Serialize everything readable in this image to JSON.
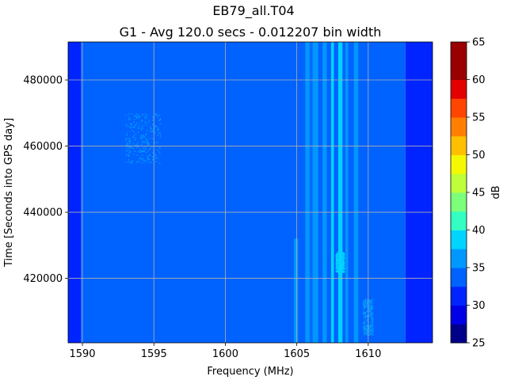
{
  "chart_data": {
    "type": "heatmap",
    "title": "EB79_all.T04",
    "subtitle": "G1 - Avg 120.0 secs - 0.012207 bin width",
    "xlabel": "Frequency (MHz)",
    "ylabel": "Time [Seconds into GPS day]",
    "xlim": [
      1589.0,
      1614.5
    ],
    "ylim": [
      400500,
      491500
    ],
    "x_ticks": [
      1590,
      1595,
      1600,
      1605,
      1610
    ],
    "y_ticks": [
      420000,
      440000,
      460000,
      480000
    ],
    "x_tick_labels": [
      "1590",
      "1595",
      "1600",
      "1605",
      "1610"
    ],
    "y_tick_labels": [
      "420000",
      "440000",
      "460000",
      "480000"
    ],
    "grid": true,
    "colorbar": {
      "label": "dB",
      "range": [
        25,
        65
      ],
      "ticks": [
        25,
        30,
        35,
        40,
        45,
        50,
        55,
        60,
        65
      ],
      "tick_labels": [
        "25",
        "30",
        "35",
        "40",
        "45",
        "50",
        "55",
        "60",
        "65"
      ],
      "levels": [
        {
          "from": 25.0,
          "to": 27.5,
          "color": "#00008a"
        },
        {
          "from": 27.5,
          "to": 30.0,
          "color": "#0000e6"
        },
        {
          "from": 30.0,
          "to": 32.5,
          "color": "#0024ff"
        },
        {
          "from": 32.5,
          "to": 35.0,
          "color": "#0062ff"
        },
        {
          "from": 35.0,
          "to": 37.5,
          "color": "#0098ff"
        },
        {
          "from": 37.5,
          "to": 40.0,
          "color": "#00d4ff"
        },
        {
          "from": 40.0,
          "to": 42.5,
          "color": "#33ffc2"
        },
        {
          "from": 42.5,
          "to": 45.0,
          "color": "#7dff7a"
        },
        {
          "from": 45.0,
          "to": 47.5,
          "color": "#bfff39"
        },
        {
          "from": 47.5,
          "to": 50.0,
          "color": "#f4f802"
        },
        {
          "from": 50.0,
          "to": 52.5,
          "color": "#ffc000"
        },
        {
          "from": 52.5,
          "to": 55.0,
          "color": "#ff8000"
        },
        {
          "from": 55.0,
          "to": 57.5,
          "color": "#ff4500"
        },
        {
          "from": 57.5,
          "to": 60.0,
          "color": "#e30000"
        },
        {
          "from": 60.0,
          "to": 65.0,
          "color": "#9a0000"
        }
      ]
    },
    "background_band_db": [
      {
        "x0": 1589.0,
        "x1": 1589.9,
        "db": 31
      },
      {
        "x0": 1589.9,
        "x1": 1606.0,
        "db": 33
      },
      {
        "x0": 1606.0,
        "x1": 1612.6,
        "db": 34
      },
      {
        "x0": 1612.6,
        "x1": 1614.5,
        "db": 31
      }
    ],
    "stripes_db": [
      {
        "x0": 1602.9,
        "x1": 1603.1,
        "y0": 400500,
        "y1": 491500,
        "db": 34
      },
      {
        "x0": 1604.8,
        "x1": 1605.1,
        "y0": 400500,
        "y1": 432000,
        "db": 36
      },
      {
        "x0": 1605.6,
        "x1": 1605.9,
        "y0": 400500,
        "y1": 491500,
        "db": 36
      },
      {
        "x0": 1606.1,
        "x1": 1606.5,
        "y0": 400500,
        "y1": 491500,
        "db": 36
      },
      {
        "x0": 1606.8,
        "x1": 1607.1,
        "y0": 400500,
        "y1": 491500,
        "db": 36
      },
      {
        "x0": 1607.4,
        "x1": 1607.6,
        "y0": 400500,
        "y1": 491500,
        "db": 38
      },
      {
        "x0": 1607.9,
        "x1": 1608.2,
        "y0": 400500,
        "y1": 491500,
        "db": 38
      },
      {
        "x0": 1608.4,
        "x1": 1608.6,
        "y0": 400500,
        "y1": 491500,
        "db": 36
      },
      {
        "x0": 1609.0,
        "x1": 1609.3,
        "y0": 400500,
        "y1": 491500,
        "db": 35
      }
    ],
    "speckle_regions_db": [
      {
        "x0": 1593.0,
        "x1": 1595.5,
        "y0": 455000,
        "y1": 470000,
        "db": 36
      },
      {
        "x0": 1609.6,
        "x1": 1610.3,
        "y0": 403000,
        "y1": 414000,
        "db": 36
      },
      {
        "x0": 1607.7,
        "x1": 1608.3,
        "y0": 422000,
        "y1": 428000,
        "db": 38
      }
    ]
  }
}
